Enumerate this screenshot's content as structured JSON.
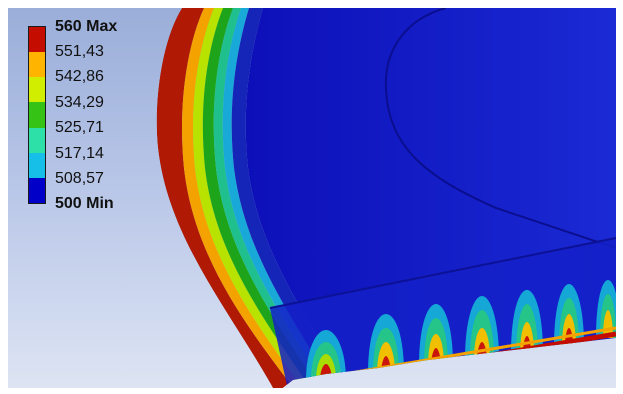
{
  "legend": {
    "labels": [
      "560 Max",
      "551,43",
      "542,86",
      "534,29",
      "525,71",
      "517,14",
      "508,57",
      "500 Min"
    ],
    "colors": [
      "#c40c00",
      "#ffb400",
      "#d2ee00",
      "#35c415",
      "#2de0a7",
      "#16bfe7",
      "#0000c8"
    ]
  },
  "colors": {
    "background_top": "#9aaed9",
    "background_bottom": "#dde4f3",
    "cold": "#1010c8",
    "hot": "#c40c00"
  }
}
